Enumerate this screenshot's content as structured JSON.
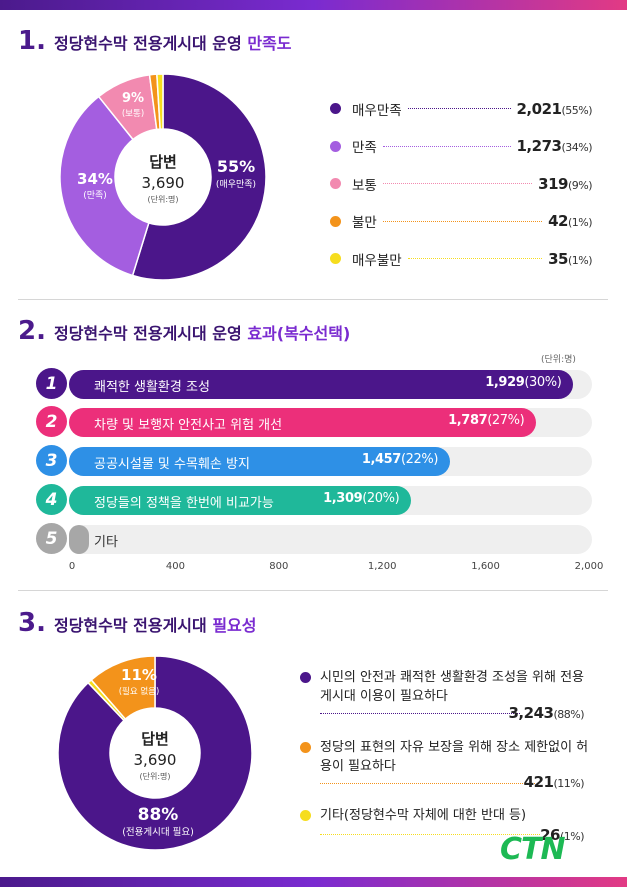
{
  "colors": {
    "very_satisfied": "#4b168a",
    "satisfied": "#a45ee0",
    "neutral": "#f28ab0",
    "dissatisfied": "#f3931b",
    "very_dissatisfied": "#f6dd1e",
    "bar1": "#4b168a",
    "bar2": "#ec2f7a",
    "bar3": "#2e90e6",
    "bar4": "#1fb89a",
    "bar5": "#a7a7a7",
    "needed": "#4b168a",
    "free": "#f3931b",
    "other": "#f6dd1e"
  },
  "section1": {
    "num": "1.",
    "title": "정당현수막 전용게시대 운영 ",
    "title_hl": "만족도",
    "center_title": "답변",
    "center_total": "3,690",
    "center_unit": "(단위:명)",
    "slice_labels": [
      {
        "pct": "55%",
        "name": "(매우만족)"
      },
      {
        "pct": "34%",
        "name": "(만족)"
      },
      {
        "pct": "9%",
        "name": "(보통)"
      }
    ],
    "legend": [
      {
        "label": "매우만족",
        "value": "2,021",
        "pct": "(55%)"
      },
      {
        "label": "만족",
        "value": "1,273",
        "pct": "(34%)"
      },
      {
        "label": "보통",
        "value": "319",
        "pct": "(9%)"
      },
      {
        "label": "불만",
        "value": "42",
        "pct": "(1%)"
      },
      {
        "label": "매우불만",
        "value": "35",
        "pct": "(1%)"
      }
    ]
  },
  "section2": {
    "num": "2.",
    "title": "정당현수막 전용게시대 운영 ",
    "title_hl": "효과(복수선택)",
    "unit": "(단위:명)",
    "bars": [
      {
        "n": "1",
        "label": "쾌적한 생활환경 조성",
        "value": "1,929",
        "pct": "(30%)"
      },
      {
        "n": "2",
        "label": "차량 및 보행자 안전사고 위험 개선",
        "value": "1,787",
        "pct": "(27%)"
      },
      {
        "n": "3",
        "label": "공공시설물 및 수목훼손 방지",
        "value": "1,457",
        "pct": "(22%)"
      },
      {
        "n": "4",
        "label": "정당들의 정책을 한번에 비교가능",
        "value": "1,309",
        "pct": "(20%)"
      },
      {
        "n": "5",
        "label": "기타",
        "value": "",
        "pct": ""
      }
    ],
    "xticks": [
      "0",
      "400",
      "800",
      "1,200",
      "1,600",
      "2,000"
    ]
  },
  "section3": {
    "num": "3.",
    "title": "정당현수막 전용게시대 ",
    "title_hl": "필요성",
    "center_title": "답변",
    "center_total": "3,690",
    "center_unit": "(단위:명)",
    "slice_labels": [
      {
        "pct": "11%",
        "name": "(필요 없음)"
      },
      {
        "pct": "88%",
        "name": "(전용게시대 필요)"
      }
    ],
    "legend": [
      {
        "text": "시민의 안전과 쾌적한 생활환경 조성을 위해 전용게시대 이용이 필요하다",
        "value": "3,243",
        "pct": "(88%)"
      },
      {
        "text": "정당의 표현의 자유 보장을 위해 장소 제한없이 허용이 필요하다",
        "value": "421",
        "pct": "(11%)"
      },
      {
        "text": "기타(정당현수막 자체에 대한 반대 등)",
        "value": "26",
        "pct": "(1%)"
      }
    ]
  },
  "logo": "CTN",
  "chart_data": [
    {
      "type": "pie",
      "title": "정당현수막 전용게시대 운영 만족도",
      "categories": [
        "매우만족",
        "만족",
        "보통",
        "불만",
        "매우불만"
      ],
      "values": [
        2021,
        1273,
        319,
        42,
        35
      ],
      "percents": [
        55,
        34,
        9,
        1,
        1
      ],
      "total": 3690,
      "donut": true
    },
    {
      "type": "bar",
      "orientation": "horizontal",
      "title": "정당현수막 전용게시대 운영 효과(복수선택)",
      "categories": [
        "쾌적한 생활환경 조성",
        "차량 및 보행자 안전사고 위험 개선",
        "공공시설물 및 수목훼손 방지",
        "정당들의 정책을 한번에 비교가능",
        "기타"
      ],
      "values": [
        1929,
        1787,
        1457,
        1309,
        20
      ],
      "percents": [
        30,
        27,
        22,
        20,
        null
      ],
      "xlim": [
        0,
        2000
      ]
    },
    {
      "type": "pie",
      "title": "정당현수막 전용게시대 필요성",
      "categories": [
        "전용게시대 필요",
        "필요 없음",
        "기타"
      ],
      "values": [
        3243,
        421,
        26
      ],
      "percents": [
        88,
        11,
        1
      ],
      "total": 3690,
      "donut": true
    }
  ]
}
